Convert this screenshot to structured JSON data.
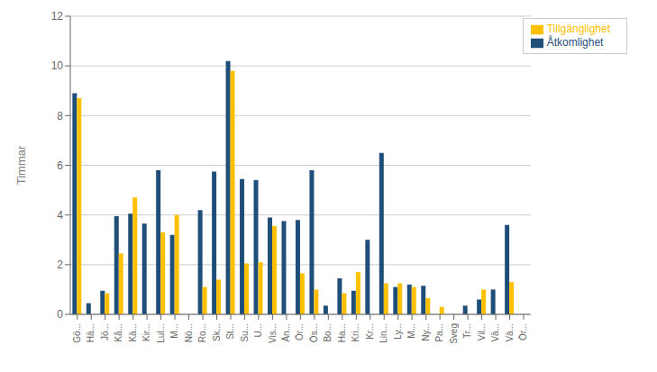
{
  "chart_data": {
    "type": "bar",
    "ylabel": "Timmar",
    "categories": [
      "Gö...",
      "Hä...",
      "Jö...",
      "Kå...",
      "Kä...",
      "Kir...",
      "Lul...",
      "M...",
      "Nö...",
      "Ro...",
      "Sk...",
      "St...",
      "Su...",
      "U...",
      "Vis...",
      "Än...",
      "Ör...",
      "Ös...",
      "Bo...",
      "Ha...",
      "Kri...",
      "Kr...",
      "Lin...",
      "Ly...",
      "M...",
      "Ny...",
      "Pa...",
      "Sveg",
      "Tr...",
      "Vil...",
      "Vä...",
      "Vä...",
      "Ör..."
    ],
    "series": [
      {
        "name": "Åtkomlighet",
        "color": "#1F4E79",
        "values": [
          8.9,
          0.45,
          0.95,
          3.95,
          4.05,
          3.65,
          5.8,
          3.2,
          0.0,
          4.2,
          5.75,
          10.2,
          5.45,
          5.4,
          3.9,
          3.75,
          3.8,
          5.8,
          0.35,
          1.45,
          0.95,
          3.0,
          6.5,
          1.1,
          1.2,
          1.15,
          0.0,
          0.0,
          0.35,
          0.6,
          1.0,
          3.6,
          0.0
        ]
      },
      {
        "name": "Tillgänglighet",
        "color": "#FFC000",
        "values": [
          8.7,
          0.0,
          0.85,
          2.45,
          4.7,
          0.0,
          3.3,
          4.0,
          0.0,
          1.1,
          1.4,
          9.8,
          2.05,
          2.1,
          3.55,
          0.0,
          1.65,
          1.0,
          0.0,
          0.85,
          1.7,
          0.0,
          1.25,
          1.25,
          1.1,
          0.65,
          0.3,
          0.0,
          0.0,
          1.0,
          0.0,
          1.3,
          0.0
        ]
      }
    ],
    "ylim": [
      0,
      12
    ],
    "yticks": [
      0,
      2,
      4,
      6,
      8,
      10,
      12
    ],
    "grid": true,
    "legend": "upper right"
  }
}
